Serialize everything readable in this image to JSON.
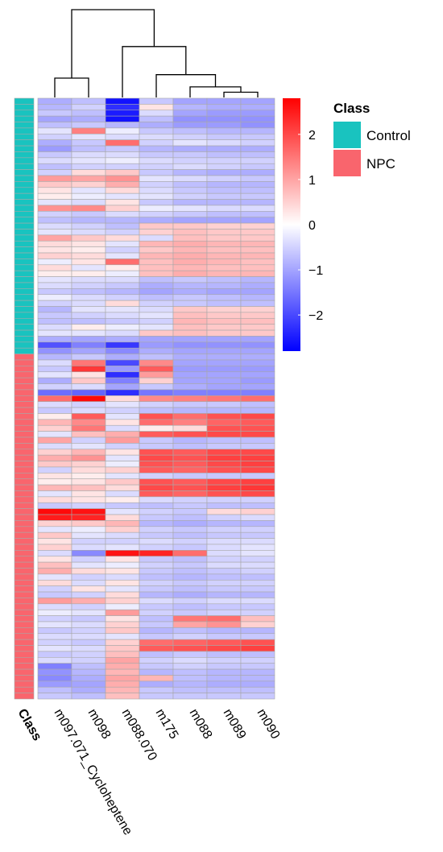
{
  "chart_data": {
    "type": "heatmap",
    "columns": [
      "m097.071_Cycloheptene",
      "m098",
      "m088.070",
      "m175",
      "m088",
      "m089",
      "m090"
    ],
    "annotation": {
      "title": "Class",
      "track_label": "Class",
      "levels": [
        {
          "name": "Control",
          "color": "#19c3bf"
        },
        {
          "name": "NPC",
          "color": "#f9656d"
        }
      ],
      "counts": [
        43,
        58
      ]
    },
    "color_scale": {
      "range": [
        -2.8,
        2.8
      ],
      "ticks": [
        "2",
        "1",
        "0",
        "−1",
        "−2"
      ],
      "tick_values": [
        2,
        1,
        0,
        -1,
        -2
      ],
      "low": "#0000ff",
      "mid": "#ffffff",
      "high": "#ff0000"
    },
    "dendrogram": {
      "merges": [
        {
          "a": 5,
          "b": 6,
          "h": 0.06
        },
        {
          "a": 4,
          "b": "m1",
          "h": 0.12
        },
        {
          "a": 3,
          "b": "m2",
          "h": 0.26
        },
        {
          "a": 0,
          "b": 1,
          "h": 0.22
        },
        {
          "a": 2,
          "b": "m3",
          "h": 0.58
        },
        {
          "a": "m4",
          "b": "m5",
          "h": 1.0
        }
      ]
    },
    "cells": [
      [
        -0.9,
        -0.7,
        -2.6,
        -0.6,
        -1.0,
        -1.0,
        -1.0
      ],
      [
        -0.8,
        -0.5,
        -2.3,
        0.3,
        -0.8,
        -0.9,
        -0.9
      ],
      [
        -0.6,
        -0.7,
        -2.5,
        -0.4,
        -1.0,
        -1.1,
        -1.1
      ],
      [
        -1.0,
        -0.9,
        -2.6,
        -0.7,
        -1.2,
        -1.2,
        -1.2
      ],
      [
        -0.7,
        -0.6,
        -0.8,
        -0.9,
        -1.1,
        -1.1,
        -1.2
      ],
      [
        -0.3,
        1.4,
        -0.2,
        -0.6,
        -0.7,
        -0.8,
        -0.8
      ],
      [
        -0.5,
        -0.3,
        -0.4,
        -0.4,
        -0.5,
        -0.6,
        -0.6
      ],
      [
        -0.9,
        -0.6,
        1.6,
        -0.5,
        -0.3,
        -0.4,
        -0.5
      ],
      [
        -1.1,
        -0.7,
        -0.6,
        -0.8,
        -0.9,
        -0.9,
        -0.9
      ],
      [
        -0.6,
        -0.4,
        -0.4,
        -0.6,
        -0.6,
        -0.7,
        -0.7
      ],
      [
        -0.4,
        -0.3,
        -0.2,
        -0.4,
        -0.5,
        -0.5,
        -0.5
      ],
      [
        -0.7,
        -0.5,
        -0.5,
        -0.5,
        -0.4,
        -0.5,
        -0.6
      ],
      [
        -0.5,
        0.4,
        0.6,
        -0.6,
        -0.8,
        -0.9,
        -0.9
      ],
      [
        1.1,
        1.0,
        1.2,
        -0.3,
        -0.4,
        -0.5,
        -0.6
      ],
      [
        0.6,
        0.5,
        0.9,
        -0.5,
        -0.7,
        -0.8,
        -0.8
      ],
      [
        0.3,
        -0.3,
        0.4,
        -0.4,
        -0.6,
        -0.7,
        -0.7
      ],
      [
        0.2,
        -0.2,
        -0.3,
        -0.3,
        -0.5,
        -0.6,
        -0.6
      ],
      [
        -0.3,
        -0.4,
        0.3,
        -0.6,
        -0.8,
        -0.8,
        -0.8
      ],
      [
        1.2,
        1.3,
        0.5,
        -0.2,
        -0.3,
        -0.4,
        -0.4
      ],
      [
        -0.5,
        -0.6,
        -0.4,
        -0.5,
        -0.6,
        -0.7,
        -0.7
      ],
      [
        -0.7,
        -0.8,
        -0.8,
        -0.9,
        -1.0,
        -1.0,
        -1.0
      ],
      [
        -0.4,
        -0.5,
        -0.7,
        0.6,
        0.6,
        0.5,
        0.5
      ],
      [
        -0.3,
        -0.4,
        -0.5,
        0.5,
        0.7,
        0.6,
        0.6
      ],
      [
        1.0,
        0.6,
        0.4,
        -0.4,
        0.7,
        0.6,
        0.6
      ],
      [
        0.4,
        0.3,
        -0.3,
        0.8,
        0.9,
        0.8,
        0.8
      ],
      [
        0.3,
        0.2,
        -0.5,
        0.6,
        0.8,
        0.7,
        0.7
      ],
      [
        0.5,
        0.4,
        -0.3,
        0.8,
        0.9,
        0.8,
        0.8
      ],
      [
        -0.2,
        0.3,
        1.6,
        0.7,
        0.9,
        0.8,
        0.7
      ],
      [
        0.4,
        -0.3,
        0.2,
        0.7,
        0.8,
        0.7,
        0.7
      ],
      [
        0.2,
        0.2,
        -0.2,
        0.7,
        0.9,
        0.8,
        0.8
      ],
      [
        -0.3,
        -0.4,
        -0.4,
        -0.7,
        -0.6,
        -0.7,
        -0.8
      ],
      [
        -0.4,
        -0.5,
        -0.6,
        -0.9,
        -0.8,
        -0.8,
        -0.9
      ],
      [
        -0.6,
        -0.7,
        -0.8,
        -1.0,
        -0.9,
        -1.0,
        -1.0
      ],
      [
        -0.2,
        -0.4,
        -0.5,
        -0.7,
        -0.6,
        -0.7,
        -0.8
      ],
      [
        -0.5,
        -0.4,
        0.4,
        -0.5,
        -0.6,
        -0.7,
        -0.7
      ],
      [
        -0.8,
        -0.3,
        -0.3,
        -0.4,
        0.6,
        0.5,
        0.5
      ],
      [
        -0.6,
        -0.5,
        -0.4,
        -0.3,
        0.7,
        0.6,
        0.6
      ],
      [
        -0.7,
        -0.7,
        -0.6,
        -0.5,
        0.8,
        0.7,
        0.7
      ],
      [
        -0.4,
        0.2,
        -0.2,
        -0.3,
        0.7,
        0.6,
        0.6
      ],
      [
        -0.3,
        -0.3,
        -0.4,
        0.6,
        0.7,
        0.6,
        0.6
      ],
      [
        -0.9,
        -1.0,
        -0.9,
        -1.0,
        -1.0,
        -1.0,
        -1.0
      ],
      [
        -1.9,
        -1.4,
        -2.2,
        -1.1,
        -1.2,
        -1.2,
        -1.2
      ],
      [
        -1.2,
        -1.0,
        -1.3,
        -0.9,
        -1.0,
        -1.0,
        -1.0
      ],
      [
        -0.8,
        -0.6,
        -0.9,
        -0.7,
        -0.9,
        -0.9,
        -0.9
      ],
      [
        -0.4,
        1.5,
        -2.0,
        1.3,
        -1.0,
        -1.0,
        -1.0
      ],
      [
        -0.6,
        2.2,
        -1.1,
        1.8,
        -1.1,
        -1.1,
        -1.1
      ],
      [
        -0.3,
        0.3,
        -2.3,
        1.1,
        -1.0,
        -1.0,
        -1.0
      ],
      [
        -0.9,
        0.6,
        -1.4,
        0.5,
        -1.0,
        -1.0,
        -1.1
      ],
      [
        -0.5,
        -0.4,
        -1.0,
        -0.6,
        -0.9,
        -1.0,
        -1.0
      ],
      [
        -1.6,
        -1.7,
        -2.3,
        -1.5,
        -1.4,
        -1.4,
        -1.4
      ],
      [
        1.6,
        2.7,
        0.4,
        1.3,
        1.4,
        1.5,
        1.6
      ],
      [
        -0.4,
        -0.5,
        -0.3,
        -0.5,
        -0.6,
        -0.6,
        -0.7
      ],
      [
        -0.6,
        -0.4,
        -0.5,
        -0.7,
        -0.8,
        -0.8,
        -0.8
      ],
      [
        0.2,
        1.8,
        -0.3,
        1.9,
        1.6,
        1.9,
        2.0
      ],
      [
        0.8,
        1.3,
        0.3,
        1.6,
        1.4,
        1.7,
        1.8
      ],
      [
        0.5,
        1.5,
        -0.4,
        0.2,
        0.4,
        1.9,
        1.9
      ],
      [
        -0.3,
        0.7,
        0.9,
        1.8,
        1.9,
        2.0,
        2.0
      ],
      [
        1.0,
        -0.5,
        1.1,
        -0.6,
        -0.8,
        -0.7,
        -0.7
      ],
      [
        -0.4,
        -0.3,
        -0.5,
        -0.6,
        -0.7,
        -0.6,
        -0.6
      ],
      [
        0.5,
        0.8,
        0.3,
        1.9,
        1.8,
        2.0,
        2.0
      ],
      [
        0.9,
        1.2,
        -0.3,
        2.0,
        1.9,
        2.1,
        2.1
      ],
      [
        0.6,
        0.5,
        -0.2,
        1.9,
        1.8,
        2.0,
        2.1
      ],
      [
        -0.5,
        0.4,
        0.5,
        1.8,
        1.7,
        1.9,
        2.0
      ],
      [
        0.3,
        0.2,
        -0.3,
        -0.5,
        -0.6,
        -0.6,
        -0.6
      ],
      [
        0.2,
        0.3,
        0.6,
        1.9,
        1.8,
        2.0,
        2.1
      ],
      [
        0.8,
        0.7,
        0.4,
        2.0,
        1.9,
        2.1,
        2.2
      ],
      [
        -0.3,
        0.3,
        -0.4,
        1.8,
        1.7,
        1.9,
        2.0
      ],
      [
        0.4,
        0.3,
        0.2,
        -0.4,
        -0.5,
        -0.5,
        -0.5
      ],
      [
        -0.6,
        -0.5,
        -0.6,
        -0.7,
        -0.6,
        -0.7,
        -0.7
      ],
      [
        2.7,
        2.6,
        -0.3,
        -0.5,
        -0.6,
        0.4,
        0.5
      ],
      [
        2.5,
        2.4,
        0.4,
        -0.6,
        -0.7,
        -0.5,
        -0.4
      ],
      [
        0.5,
        0.6,
        0.8,
        -0.8,
        -0.9,
        -0.8,
        -0.8
      ],
      [
        -0.3,
        -0.2,
        0.5,
        -0.5,
        -0.6,
        -0.5,
        -0.5
      ],
      [
        0.6,
        -0.3,
        -0.4,
        -0.6,
        -0.7,
        -0.6,
        -0.6
      ],
      [
        0.3,
        -0.5,
        -0.5,
        -0.4,
        -0.5,
        -0.4,
        -0.4
      ],
      [
        0.5,
        -0.4,
        -0.3,
        -0.5,
        -0.6,
        -0.4,
        -0.3
      ],
      [
        -0.4,
        -1.3,
        2.6,
        2.4,
        1.6,
        -0.4,
        -0.3
      ],
      [
        0.3,
        -0.5,
        0.3,
        -0.6,
        -0.7,
        -0.5,
        -0.5
      ],
      [
        0.7,
        -0.3,
        -0.2,
        -0.5,
        -0.6,
        -0.4,
        -0.4
      ],
      [
        0.9,
        0.4,
        0.3,
        -0.6,
        -0.7,
        -0.6,
        -0.5
      ],
      [
        -0.3,
        -0.5,
        -0.4,
        -0.7,
        -0.8,
        -0.7,
        -0.7
      ],
      [
        0.4,
        -0.4,
        0.3,
        -0.5,
        -0.6,
        -0.5,
        -0.5
      ],
      [
        -0.5,
        0.3,
        -0.3,
        -0.6,
        -0.7,
        -0.6,
        -0.6
      ],
      [
        -0.6,
        -0.5,
        0.4,
        -0.8,
        -0.9,
        -0.8,
        -0.8
      ],
      [
        1.1,
        0.9,
        0.5,
        -0.4,
        -0.5,
        -0.4,
        -0.4
      ],
      [
        -0.4,
        -0.5,
        -0.2,
        -0.6,
        -0.7,
        -0.6,
        -0.6
      ],
      [
        -0.2,
        -0.3,
        1.1,
        -0.5,
        -0.6,
        -0.5,
        -0.5
      ],
      [
        -0.5,
        -0.6,
        0.3,
        -0.7,
        1.5,
        1.6,
        0.7
      ],
      [
        -0.3,
        -0.4,
        0.5,
        -0.6,
        1.0,
        1.2,
        0.5
      ],
      [
        -0.6,
        -0.5,
        0.6,
        -0.8,
        -0.7,
        -0.8,
        -0.8
      ],
      [
        -0.4,
        -0.4,
        -0.3,
        -0.6,
        -0.5,
        -0.6,
        -0.6
      ],
      [
        -0.5,
        -0.6,
        0.5,
        1.6,
        1.7,
        1.8,
        1.9
      ],
      [
        -0.3,
        -0.4,
        0.6,
        1.8,
        1.9,
        2.0,
        2.1
      ],
      [
        -0.6,
        -0.5,
        0.7,
        -0.7,
        -0.6,
        -0.7,
        -0.7
      ],
      [
        -0.4,
        -0.5,
        1.0,
        -0.5,
        -0.4,
        -0.5,
        -0.5
      ],
      [
        -1.4,
        -0.7,
        0.9,
        -0.6,
        -0.5,
        -0.6,
        -0.6
      ],
      [
        -1.2,
        -0.8,
        0.8,
        -0.8,
        -0.7,
        -0.8,
        -0.8
      ],
      [
        -1.3,
        -0.9,
        1.0,
        0.8,
        -0.7,
        -0.8,
        -0.8
      ],
      [
        -1.1,
        -1.0,
        0.9,
        -0.9,
        -0.8,
        -0.9,
        -0.9
      ],
      [
        -0.7,
        -0.9,
        0.8,
        -0.6,
        -0.7,
        -0.7,
        -0.7
      ],
      [
        -0.6,
        -0.7,
        0.7,
        -0.6,
        -0.6,
        -0.6,
        -0.6
      ]
    ]
  }
}
